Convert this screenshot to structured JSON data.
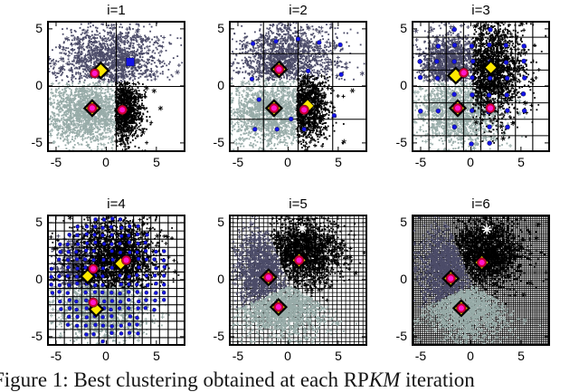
{
  "figure": {
    "caption": {
      "part1": "Figure 1: Best clustering obtained at each RP",
      "part2": "KM",
      "part3": " iteration"
    }
  },
  "chart_data": {
    "type": "scatter",
    "title": "",
    "xlabel": "",
    "ylabel": "",
    "layout": {
      "rows": 2,
      "cols": 3,
      "xlim": [
        -5.9,
        7.9
      ],
      "ylim": [
        -5.8,
        5.7
      ],
      "grid": true,
      "legend": "none"
    },
    "xtick_labels": [
      "-5",
      "0",
      "5"
    ],
    "ytick_labels": [
      "5",
      "0",
      "-5"
    ],
    "xtick_values": [
      -5,
      0,
      5
    ],
    "ytick_values": [
      5,
      0,
      -5
    ],
    "colors": {
      "slate": "#4c4c69",
      "gray": "#98aca9",
      "black": "#000000",
      "blue": "#1414e6",
      "yellow": "#ffe800",
      "magenta": "#ff18cc",
      "ring": "#cc0033",
      "white_star": "#ffffff",
      "grid_line": "#000000"
    },
    "subplots": [
      {
        "title": "i=1",
        "grid_divisions": 2,
        "grid_over_clusters": true,
        "clusters": [
          {
            "color": "slate",
            "cx": 0.5,
            "cy": 2.3,
            "sx": 2.7,
            "sy": 1.55,
            "n": 1600,
            "outliers": 26,
            "keep": [
              [
                0,
                -1,
                -0.35
              ]
            ]
          },
          {
            "color": "gray",
            "cx": -1.9,
            "cy": -2.3,
            "sx": 2.1,
            "sy": 1.45,
            "n": 1600,
            "outliers": 20,
            "keep": [
              [
                1,
                0,
                0.95
              ],
              [
                0,
                1,
                0.35
              ]
            ]
          },
          {
            "color": "black",
            "cx": 1.7,
            "cy": -2.1,
            "sx": 0.95,
            "sy": 1.35,
            "n": 1300,
            "outliers": 16,
            "keep": [
              [
                -1,
                0,
                -0.95
              ],
              [
                0,
                1,
                0.35
              ]
            ]
          }
        ],
        "rep_dots": {
          "mode": "none"
        },
        "markers": [
          {
            "t": "bdiamond",
            "x": -0.55,
            "y": 1.35,
            "s": 8.5
          },
          {
            "t": "circle",
            "x": -1.15,
            "y": 1.1,
            "r": 5.3
          },
          {
            "t": "bdiamond",
            "x": -1.4,
            "y": -1.95,
            "s": 8.5
          },
          {
            "t": "circle",
            "x": -1.4,
            "y": -1.95,
            "r": 5.3
          },
          {
            "t": "ydiamond",
            "x": 1.6,
            "y": -2.1,
            "s": 6.5
          },
          {
            "t": "circle",
            "x": 1.6,
            "y": -2.1,
            "r": 5.3
          },
          {
            "t": "bluesq",
            "x": 2.4,
            "y": 2.1,
            "s": 4.5
          }
        ]
      },
      {
        "title": "i=2",
        "grid_divisions": 4,
        "grid_over_clusters": true,
        "clusters": [
          {
            "color": "slate",
            "cx": -0.2,
            "cy": 2.4,
            "sx": 2.6,
            "sy": 1.6,
            "n": 1600,
            "outliers": 26,
            "keep": [
              [
                0,
                -1,
                -0.5
              ]
            ]
          },
          {
            "color": "gray",
            "cx": -1.9,
            "cy": -2.3,
            "sx": 2.1,
            "sy": 1.45,
            "n": 1600,
            "outliers": 20,
            "keep": [
              [
                1,
                0,
                0.9
              ],
              [
                0,
                1,
                0.5
              ]
            ]
          },
          {
            "color": "black",
            "cx": 1.8,
            "cy": -1.8,
            "sx": 1.1,
            "sy": 1.6,
            "n": 1400,
            "outliers": 30,
            "keep": [
              [
                -1,
                0,
                -0.9
              ],
              [
                0,
                1,
                0.9
              ]
            ]
          }
        ],
        "rep_dots": {
          "mode": "list",
          "points": [
            [
              -3.5,
              3.7
            ],
            [
              -1.2,
              3.9
            ],
            [
              1.0,
              4.1
            ],
            [
              3.1,
              3.8
            ],
            [
              5.2,
              3.6
            ],
            [
              -3.6,
              0.6
            ],
            [
              2.0,
              1.3
            ],
            [
              5.3,
              1.0
            ],
            [
              -2.9,
              -1.2
            ],
            [
              -3.3,
              -3.8
            ],
            [
              -1.1,
              -3.8
            ],
            [
              1.6,
              -3.8
            ],
            [
              0.3,
              -2.9
            ],
            [
              4.6,
              -2.6
            ]
          ]
        },
        "markers": [
          {
            "t": "bdiamond",
            "x": -0.9,
            "y": 1.45,
            "s": 8.5
          },
          {
            "t": "circle",
            "x": -0.9,
            "y": 1.45,
            "r": 5.3
          },
          {
            "t": "bdiamond",
            "x": -1.4,
            "y": -1.95,
            "s": 8.5
          },
          {
            "t": "circle",
            "x": -1.4,
            "y": -1.95,
            "r": 5.3
          },
          {
            "t": "ydiamond",
            "x": 1.95,
            "y": -1.75,
            "s": 7
          },
          {
            "t": "circle",
            "x": 1.6,
            "y": -2.1,
            "r": 5.3
          }
        ]
      },
      {
        "title": "i=3",
        "grid_divisions": 8,
        "grid_over_clusters": true,
        "clusters": [
          {
            "color": "slate",
            "cx": -2.2,
            "cy": 2.0,
            "sx": 1.5,
            "sy": 1.25,
            "n": 1300,
            "outliers": 16,
            "keep": [
              [
                1,
                0,
                0.3
              ],
              [
                0,
                -1,
                -0.4
              ]
            ]
          },
          {
            "color": "gray",
            "cx": -1.2,
            "cy": -2.3,
            "sx": 2.1,
            "sy": 1.5,
            "n": 1600,
            "outliers": 20,
            "keep": [
              [
                0,
                1,
                0.4
              ]
            ]
          },
          {
            "color": "black",
            "cx": 1.9,
            "cy": 1.4,
            "sx": 1.8,
            "sy": 2.1,
            "n": 2000,
            "outliers": 34,
            "keep": [
              [
                -1,
                0,
                -0.2
              ]
            ]
          }
        ],
        "rep_dots": {
          "mode": "grid",
          "divisions": 8,
          "ellipse": [
            0.6,
            0.2,
            6.3,
            5.4
          ],
          "skip": 0.05,
          "jitter": 0.1
        },
        "markers": [
          {
            "t": "bdiamond",
            "x": -1.5,
            "y": 0.9,
            "s": 8.5
          },
          {
            "t": "circle",
            "x": -0.7,
            "y": 1.15,
            "r": 5.3
          },
          {
            "t": "bdiamond",
            "x": 2.0,
            "y": 1.6,
            "s": 7.5
          },
          {
            "t": "bdiamond",
            "x": -1.3,
            "y": -1.95,
            "s": 8.5
          },
          {
            "t": "circle",
            "x": -1.3,
            "y": -1.95,
            "r": 5.3
          },
          {
            "t": "circle",
            "x": 1.95,
            "y": -1.95,
            "r": 5.3
          }
        ]
      },
      {
        "title": "i=4",
        "grid_divisions": 16,
        "grid_over_clusters": true,
        "clusters": [
          {
            "color": "slate",
            "cx": -3.3,
            "cy": 0.8,
            "sx": 0.95,
            "sy": 1.4,
            "n": 600,
            "outliers": 10,
            "keep": [
              [
                1,
                0,
                -1.4
              ],
              [
                0,
                -1,
                0.8
              ]
            ]
          },
          {
            "color": "gray",
            "cx": -0.4,
            "cy": -2.4,
            "sx": 2.2,
            "sy": 1.4,
            "n": 1700,
            "outliers": 22,
            "keep": [
              [
                0,
                1,
                -0.5
              ]
            ]
          },
          {
            "color": "black",
            "cx": 0.9,
            "cy": 1.9,
            "sx": 2.0,
            "sy": 1.7,
            "n": 2100,
            "outliers": 30,
            "keep": [
              [
                0,
                -1,
                0.7
              ]
            ]
          }
        ],
        "rep_dots": {
          "mode": "grid",
          "divisions": 16,
          "ellipse": [
            0.4,
            0,
            6.1,
            5.5
          ],
          "skip": 0.12,
          "jitter": 0.25
        },
        "markers": [
          {
            "t": "bdiamond",
            "x": 1.45,
            "y": 1.4,
            "s": 7.5
          },
          {
            "t": "circle",
            "x": 2.0,
            "y": 1.7,
            "r": 5.3
          },
          {
            "t": "bdiamond",
            "x": -1.85,
            "y": 0.3,
            "s": 7.5
          },
          {
            "t": "circle",
            "x": -1.3,
            "y": 0.95,
            "r": 5.3
          },
          {
            "t": "bdiamond",
            "x": -1.0,
            "y": -2.6,
            "s": 7.5
          },
          {
            "t": "circle",
            "x": -1.3,
            "y": -2.0,
            "r": 5.3
          }
        ]
      },
      {
        "title": "i=5",
        "grid_divisions": 32,
        "grid_over_clusters": false,
        "clusters": [
          {
            "color": "black",
            "cx": 1.5,
            "cy": 2.4,
            "sx": 1.9,
            "sy": 1.5,
            "n": 2000,
            "outliers": 30,
            "keep": [
              [
                -3.1,
                -1.45,
                0.126
              ],
              [
                -2.05,
                -4.15,
                1.817
              ]
            ]
          },
          {
            "color": "slate",
            "cx": -2.6,
            "cy": 0.9,
            "sx": 1.3,
            "sy": 1.7,
            "n": 1500,
            "outliers": 14,
            "keep": [
              [
                3.1,
                1.45,
                -0.126
              ],
              [
                1.05,
                -2.7,
                1.691
              ]
            ]
          },
          {
            "color": "gray",
            "cx": -0.6,
            "cy": -2.5,
            "sx": 2.1,
            "sy": 1.3,
            "n": 1800,
            "outliers": 18,
            "keep": [
              [
                -1.05,
                2.7,
                -1.691
              ],
              [
                2.05,
                4.15,
                -1.817
              ]
            ]
          }
        ],
        "rep_dots": {
          "mode": "none"
        },
        "markers": [
          {
            "t": "bdiamond",
            "x": 1.1,
            "y": 1.7,
            "s": 8.5
          },
          {
            "t": "circle",
            "x": 1.1,
            "y": 1.7,
            "r": 5.3
          },
          {
            "t": "bdiamond",
            "x": -1.95,
            "y": 0.2,
            "s": 8.5
          },
          {
            "t": "circle",
            "x": -1.95,
            "y": 0.2,
            "r": 5.3
          },
          {
            "t": "bdiamond",
            "x": -0.95,
            "y": -2.4,
            "s": 8.5
          },
          {
            "t": "circle",
            "x": -0.95,
            "y": -2.4,
            "r": 5.3
          },
          {
            "t": "wstar",
            "x": 1.4,
            "y": 4.5,
            "r": 5
          }
        ]
      },
      {
        "title": "i=6",
        "grid_divisions": 64,
        "grid_over_clusters": false,
        "clusters": [
          {
            "color": "black",
            "cx": 1.5,
            "cy": 2.4,
            "sx": 1.9,
            "sy": 1.5,
            "n": 2000,
            "outliers": 30,
            "keep": [
              [
                -3.1,
                -1.45,
                0.126
              ],
              [
                -2.05,
                -4.15,
                1.817
              ]
            ]
          },
          {
            "color": "slate",
            "cx": -2.6,
            "cy": 0.9,
            "sx": 1.3,
            "sy": 1.7,
            "n": 1500,
            "outliers": 14,
            "keep": [
              [
                3.1,
                1.45,
                -0.126
              ],
              [
                1.05,
                -2.7,
                1.691
              ]
            ]
          },
          {
            "color": "gray",
            "cx": -0.6,
            "cy": -2.5,
            "sx": 2.1,
            "sy": 1.3,
            "n": 1800,
            "outliers": 18,
            "keep": [
              [
                -1.05,
                2.7,
                -1.691
              ],
              [
                2.05,
                4.15,
                -1.817
              ]
            ]
          }
        ],
        "rep_dots": {
          "mode": "none"
        },
        "markers": [
          {
            "t": "bdiamond",
            "x": 1.1,
            "y": 1.5,
            "s": 8.5
          },
          {
            "t": "circle",
            "x": 1.1,
            "y": 1.5,
            "r": 5.3
          },
          {
            "t": "bdiamond",
            "x": -2.0,
            "y": 0.1,
            "s": 8.5
          },
          {
            "t": "circle",
            "x": -2.0,
            "y": 0.1,
            "r": 5.3
          },
          {
            "t": "bdiamond",
            "x": -0.95,
            "y": -2.5,
            "s": 8.5
          },
          {
            "t": "circle",
            "x": -0.95,
            "y": -2.5,
            "r": 5.3
          },
          {
            "t": "wstar",
            "x": 1.6,
            "y": 4.4,
            "r": 5.5
          }
        ]
      }
    ]
  }
}
